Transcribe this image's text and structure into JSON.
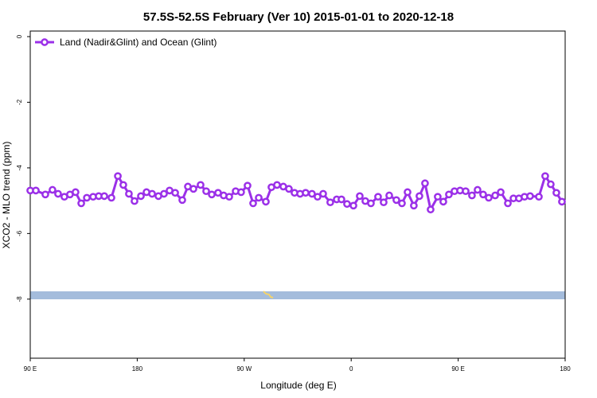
{
  "chart_data": {
    "type": "line",
    "title": "57.5S-52.5S February (Ver 10)   2015-01-01 to 2020-12-18",
    "x_label": "Longitude (deg E)",
    "y_label": "XCO2 - MLO trend (ppm)",
    "xlim": [
      90,
      540
    ],
    "xticks": [
      {
        "value": 90,
        "label": "90 E"
      },
      180,
      {
        "value": 270,
        "label": "90 W"
      },
      {
        "value": 360,
        "label": "0"
      },
      {
        "value": 450,
        "label": "90 E"
      },
      {
        "value": 540,
        "label": "180"
      }
    ],
    "ylim": [
      -9.8,
      0.17
    ],
    "yticks": [
      0,
      -2,
      -4,
      -6,
      -8
    ],
    "legend": "upper left",
    "series": [
      {
        "name": "Land (Nadir&Glint) and Ocean (Glint)",
        "color": "#9b30e8",
        "x": [
          90.0,
          94.7,
          102.7,
          108.7,
          113.4,
          118.7,
          123.4,
          128.1,
          132.9,
          137.6,
          142.9,
          147.6,
          152.3,
          158.3,
          163.7,
          168.3,
          173.0,
          177.7,
          183.1,
          187.8,
          192.5,
          197.8,
          202.5,
          207.2,
          211.9,
          217.9,
          222.6,
          227.3,
          233.3,
          238.0,
          242.7,
          248.0,
          252.7,
          257.4,
          262.8,
          267.4,
          272.8,
          277.5,
          282.2,
          288.2,
          292.9,
          297.6,
          302.9,
          307.6,
          312.3,
          317.0,
          321.7,
          327.0,
          331.7,
          336.4,
          342.4,
          347.8,
          351.8,
          356.5,
          361.9,
          367.2,
          371.9,
          376.6,
          382.6,
          387.3,
          392.0,
          398.0,
          402.7,
          407.4,
          412.7,
          417.4,
          422.1,
          426.8,
          432.8,
          437.5,
          442.2,
          446.9,
          451.6,
          456.3,
          461.6,
          466.3,
          471.0,
          475.7,
          481.1,
          485.8,
          491.8,
          496.5,
          501.1,
          505.8,
          510.5,
          517.9,
          523.2,
          527.9,
          532.6,
          537.3
        ],
        "values": [
          -4.69,
          -4.69,
          -4.81,
          -4.67,
          -4.79,
          -4.88,
          -4.81,
          -4.74,
          -5.08,
          -4.91,
          -4.88,
          -4.86,
          -4.86,
          -4.91,
          -4.25,
          -4.52,
          -4.79,
          -5.01,
          -4.86,
          -4.74,
          -4.79,
          -4.86,
          -4.79,
          -4.69,
          -4.76,
          -4.98,
          -4.57,
          -4.64,
          -4.52,
          -4.71,
          -4.81,
          -4.76,
          -4.84,
          -4.88,
          -4.71,
          -4.74,
          -4.54,
          -5.08,
          -4.91,
          -5.03,
          -4.59,
          -4.52,
          -4.57,
          -4.64,
          -4.76,
          -4.79,
          -4.76,
          -4.79,
          -4.88,
          -4.79,
          -5.05,
          -4.96,
          -4.96,
          -5.1,
          -5.15,
          -4.86,
          -5.01,
          -5.08,
          -4.88,
          -5.05,
          -4.84,
          -4.98,
          -5.08,
          -4.74,
          -5.15,
          -4.86,
          -4.47,
          -5.27,
          -4.88,
          -5.03,
          -4.81,
          -4.71,
          -4.69,
          -4.71,
          -4.84,
          -4.67,
          -4.81,
          -4.91,
          -4.84,
          -4.74,
          -5.08,
          -4.93,
          -4.93,
          -4.88,
          -4.86,
          -4.88,
          -4.25,
          -4.5,
          -4.76,
          -5.03
        ]
      }
    ]
  }
}
